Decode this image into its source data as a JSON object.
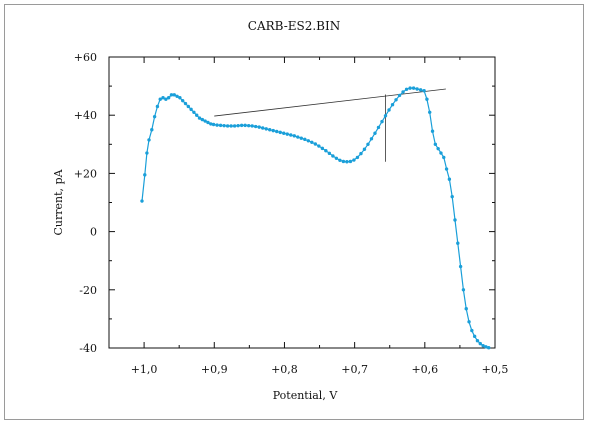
{
  "chart_data": {
    "type": "line",
    "title": "CARB-ES2.BIN",
    "xlabel": "Potential, V",
    "ylabel": "Current, pA",
    "xlim": [
      1.05,
      0.5
    ],
    "ylim": [
      -40,
      60
    ],
    "x_reversed": true,
    "xticks": [
      {
        "value": 1.0,
        "label": "+1,0"
      },
      {
        "value": 0.9,
        "label": "+0,9"
      },
      {
        "value": 0.8,
        "label": "+0,8"
      },
      {
        "value": 0.7,
        "label": "+0,7"
      },
      {
        "value": 0.6,
        "label": "+0,6"
      },
      {
        "value": 0.5,
        "label": "+0,5"
      }
    ],
    "yticks": [
      {
        "value": 60,
        "label": "+60"
      },
      {
        "value": 40,
        "label": "+40"
      },
      {
        "value": 20,
        "label": "+20"
      },
      {
        "value": 0,
        "label": "0"
      },
      {
        "value": -20,
        "label": "-20"
      },
      {
        "value": -40,
        "label": "-40"
      }
    ],
    "series_color": "#1a9fd9",
    "series": [
      {
        "x": [
          1.003,
          0.999,
          0.996,
          0.993,
          0.989,
          0.985,
          0.981,
          0.977,
          0.973,
          0.969,
          0.965,
          0.961,
          0.957,
          0.953,
          0.949,
          0.945,
          0.941,
          0.937,
          0.933,
          0.929,
          0.925,
          0.921,
          0.917,
          0.913,
          0.909,
          0.905,
          0.901,
          0.896,
          0.891,
          0.886,
          0.881,
          0.876,
          0.871,
          0.866,
          0.861,
          0.856,
          0.851,
          0.846,
          0.841,
          0.836,
          0.831,
          0.826,
          0.821,
          0.816,
          0.811,
          0.806,
          0.801,
          0.796,
          0.791,
          0.786,
          0.781,
          0.776,
          0.771,
          0.766,
          0.761,
          0.756,
          0.751,
          0.746,
          0.741,
          0.736,
          0.731,
          0.726,
          0.721,
          0.716,
          0.711,
          0.706,
          0.701,
          0.696,
          0.691,
          0.686,
          0.681,
          0.676,
          0.671,
          0.666,
          0.661,
          0.656,
          0.651,
          0.646,
          0.641,
          0.636,
          0.631,
          0.626,
          0.621,
          0.616,
          0.611,
          0.606,
          0.601,
          0.597,
          0.593,
          0.589,
          0.585,
          0.581,
          0.577,
          0.573,
          0.569,
          0.565,
          0.561,
          0.557,
          0.553,
          0.549,
          0.545,
          0.541,
          0.537,
          0.533,
          0.529,
          0.525,
          0.521,
          0.517,
          0.513,
          0.509
        ],
        "y": [
          10.5,
          19.5,
          27,
          31.5,
          35,
          39.5,
          43,
          45.5,
          46,
          45.5,
          46,
          47,
          47,
          46.5,
          46,
          45,
          44,
          43,
          42,
          41,
          40,
          39,
          38.5,
          38,
          37.5,
          37,
          36.8,
          36.6,
          36.5,
          36.4,
          36.3,
          36.3,
          36.3,
          36.4,
          36.5,
          36.5,
          36.4,
          36.3,
          36.1,
          35.9,
          35.6,
          35.3,
          35,
          34.7,
          34.4,
          34.1,
          33.8,
          33.5,
          33.2,
          32.9,
          32.5,
          32.1,
          31.7,
          31.2,
          30.7,
          30.1,
          29.4,
          28.6,
          27.8,
          26.9,
          26,
          25.2,
          24.5,
          24.1,
          24,
          24.1,
          24.6,
          25.5,
          26.8,
          28.3,
          30,
          31.9,
          33.8,
          35.8,
          37.8,
          39.8,
          41.8,
          43.6,
          45.3,
          46.8,
          48,
          48.9,
          49.3,
          49.3,
          49,
          48.7,
          48.4,
          45.5,
          41,
          34.5,
          30,
          28.5,
          27,
          25.5,
          21.5,
          18,
          12,
          4,
          -4,
          -12,
          -20,
          -26.5,
          -31,
          -34,
          -36,
          -37.5,
          -38.5,
          -39.2,
          -39.6,
          -39.9
        ]
      }
    ],
    "baseline": {
      "from": [
        0.9,
        39.7
      ],
      "to": [
        0.57,
        49
      ]
    },
    "peak_marker": {
      "x": 0.656,
      "y_top": 47.1,
      "y_bottom": 24
    }
  }
}
